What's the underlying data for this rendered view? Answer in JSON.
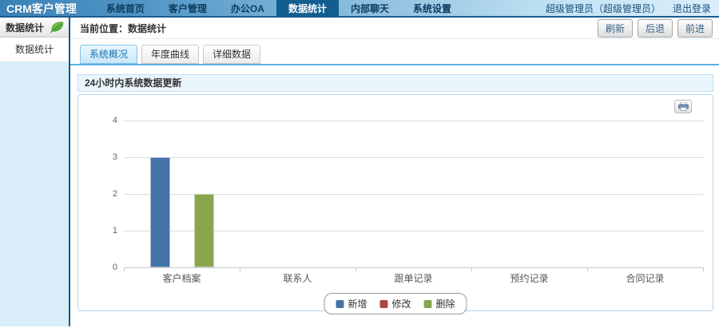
{
  "app": {
    "title": "CRM客户管理"
  },
  "topnav": {
    "items": [
      {
        "label": "系统首页",
        "active": false
      },
      {
        "label": "客户管理",
        "active": false
      },
      {
        "label": "办公OA",
        "active": false
      },
      {
        "label": "数据统计",
        "active": true
      },
      {
        "label": "内部聊天",
        "active": false
      },
      {
        "label": "系统设置",
        "active": false
      }
    ],
    "user": "超级管理员（超级管理员）",
    "logout": "退出登录"
  },
  "sidebar": {
    "header": "数据统计",
    "header_icon": "leaf-icon",
    "items": [
      {
        "label": "数据统计"
      }
    ]
  },
  "breadcrumb": {
    "label": "当前位置：数据统计",
    "buttons": [
      "刷新",
      "后退",
      "前进"
    ]
  },
  "tabs": [
    {
      "label": "系统概况",
      "active": true
    },
    {
      "label": "年度曲线",
      "active": false
    },
    {
      "label": "详细数据",
      "active": false
    }
  ],
  "panel": {
    "title": "24小时内系统数据更新"
  },
  "chart_toolbar": {
    "print_icon": "print-icon"
  },
  "chart_data": {
    "type": "bar",
    "title": "",
    "categories": [
      "客户档案",
      "联系人",
      "跟单记录",
      "预约记录",
      "合同记录"
    ],
    "series": [
      {
        "name": "新增",
        "color": "#4572a7",
        "values": [
          3,
          0,
          0,
          0,
          0
        ]
      },
      {
        "name": "修改",
        "color": "#aa4643",
        "values": [
          0,
          0,
          0,
          0,
          0
        ]
      },
      {
        "name": "删除",
        "color": "#89a54e",
        "values": [
          2,
          0,
          0,
          0,
          0
        ]
      }
    ],
    "xlabel": "",
    "ylabel": "",
    "ylim": [
      0,
      4
    ],
    "yticks": [
      0,
      1,
      2,
      3,
      4
    ],
    "grid": true,
    "legend_position": "bottom"
  },
  "colors": {
    "nav_active_bg": "#135e90",
    "nav_border": "#1d5c8c",
    "tab_underline": "#5aade4",
    "panel_header_bg": "#e9f5fd",
    "sidebar_bg": "#d9edf8"
  }
}
